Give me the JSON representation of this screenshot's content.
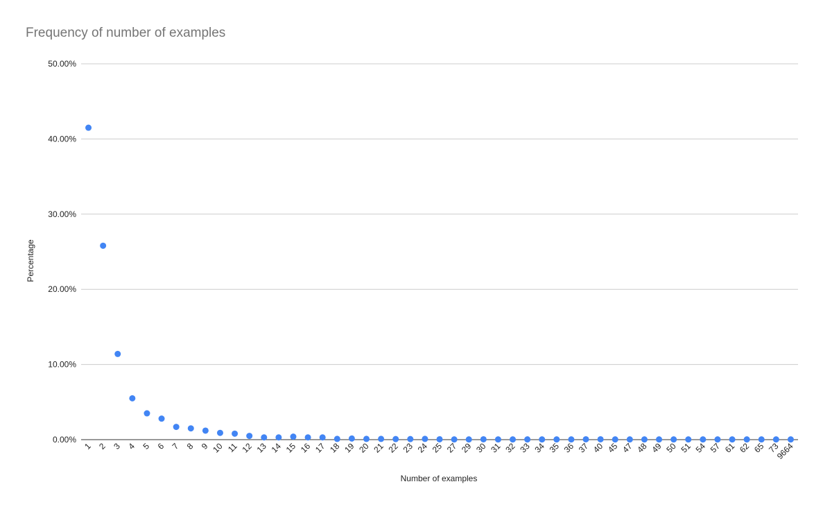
{
  "chart_data": {
    "type": "scatter",
    "title": "Frequency of number of examples",
    "xlabel": "Number of examples",
    "ylabel": "Percentage",
    "ylim": [
      0,
      50
    ],
    "y_ticks": [
      "0.00%",
      "10.00%",
      "20.00%",
      "30.00%",
      "40.00%",
      "50.00%"
    ],
    "grid": true,
    "color": "#4285f4",
    "categories": [
      "1",
      "2",
      "3",
      "4",
      "5",
      "6",
      "7",
      "8",
      "9",
      "10",
      "11",
      "12",
      "13",
      "14",
      "15",
      "16",
      "17",
      "18",
      "19",
      "20",
      "21",
      "22",
      "23",
      "24",
      "25",
      "27",
      "29",
      "30",
      "31",
      "32",
      "33",
      "34",
      "35",
      "36",
      "37",
      "40",
      "45",
      "47",
      "48",
      "49",
      "50",
      "51",
      "54",
      "57",
      "61",
      "62",
      "65",
      "73",
      "9664"
    ],
    "values": [
      41.5,
      25.8,
      11.4,
      5.5,
      3.5,
      2.8,
      1.7,
      1.5,
      1.2,
      0.9,
      0.8,
      0.5,
      0.3,
      0.3,
      0.4,
      0.3,
      0.3,
      0.1,
      0.15,
      0.1,
      0.1,
      0.08,
      0.08,
      0.1,
      0.05,
      0.03,
      0.03,
      0.05,
      0.03,
      0.03,
      0.03,
      0.03,
      0.03,
      0.03,
      0.05,
      0.05,
      0.03,
      0.03,
      0.03,
      0.03,
      0.03,
      0.03,
      0.03,
      0.03,
      0.03,
      0.03,
      0.03,
      0.03,
      0.03
    ]
  }
}
